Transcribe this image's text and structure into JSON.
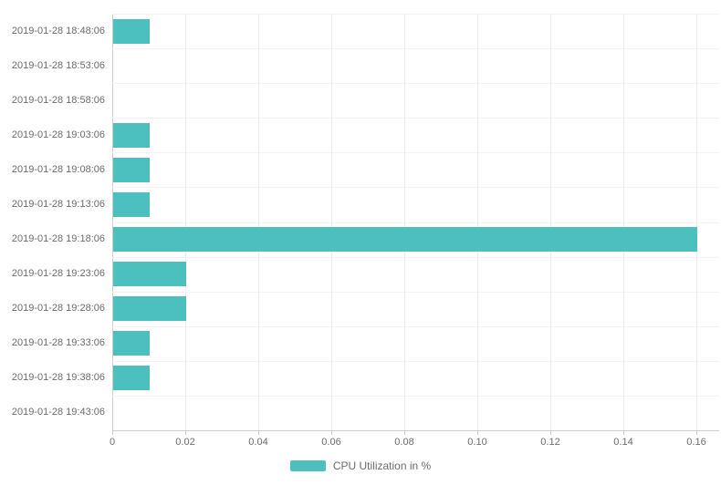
{
  "chart_data": {
    "type": "bar",
    "orientation": "horizontal",
    "title": "",
    "xlabel": "",
    "ylabel": "",
    "categories": [
      "2019-01-28 18:48:06",
      "2019-01-28 18:53:06",
      "2019-01-28 18:58:06",
      "2019-01-28 19:03:06",
      "2019-01-28 19:08:06",
      "2019-01-28 19:13:06",
      "2019-01-28 19:18:06",
      "2019-01-28 19:23:06",
      "2019-01-28 19:28:06",
      "2019-01-28 19:33:06",
      "2019-01-28 19:38:06",
      "2019-01-28 19:43:06"
    ],
    "values": [
      0.01,
      0,
      0,
      0.01,
      0.01,
      0.01,
      0.16,
      0.02,
      0.02,
      0.01,
      0.01,
      0
    ],
    "x_ticks": [
      "0",
      "0.02",
      "0.04",
      "0.06",
      "0.08",
      "0.10",
      "0.12",
      "0.14",
      "0.16"
    ],
    "x_tick_values": [
      0,
      0.02,
      0.04,
      0.06,
      0.08,
      0.1,
      0.12,
      0.14,
      0.16
    ],
    "xlim": [
      0,
      0.16
    ],
    "grid": true,
    "legend_position": "bottom-center",
    "legend": {
      "label": "CPU Utilization in %"
    },
    "colors": {
      "bar": "#4cbfbf",
      "axis_line": "#cccccc",
      "v_grid_line": "#ececec",
      "h_split_line": "#f3f3f3",
      "label_text": "#6b6b6b"
    }
  }
}
